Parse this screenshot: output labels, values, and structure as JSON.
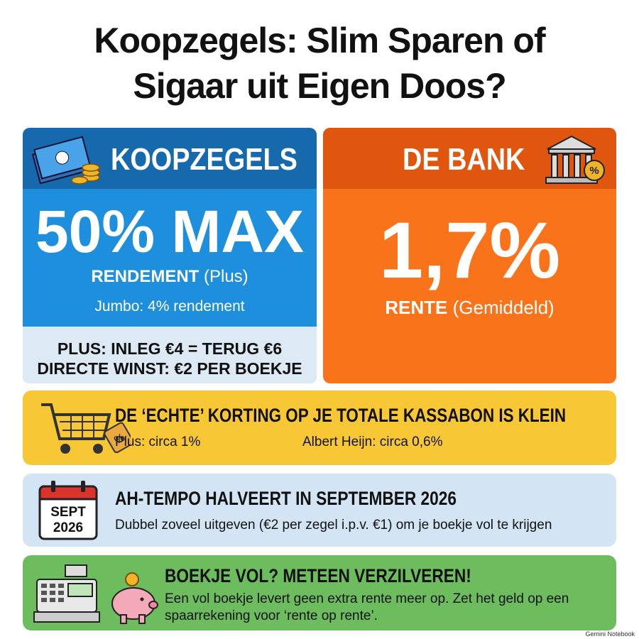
{
  "header": {
    "title_line1": "Koopzegels: Slim Sparen of",
    "title_line2": "Sigaar uit Eigen Doos?"
  },
  "koopzegels": {
    "heading": "KOOPZEGELS",
    "big": "50% MAX",
    "label": "RENDEMENT",
    "label_note": "(Plus)",
    "sub": "Jumbo: 4% rendement",
    "line1": "PLUS: INLEG €4 = TERUG €6",
    "line2": "DIRECTE WINST: €2 PER BOEKJE"
  },
  "bank": {
    "heading": "DE BANK",
    "big": "1,7%",
    "label": "RENTE",
    "label_note": "(Gemiddeld)"
  },
  "korting": {
    "heading": "DE ‘ECHTE’ KORTING OP JE TOTALE KASSABON IS KLEIN",
    "left": "Plus: circa 1%",
    "right": "Albert Heijn: circa 0,6%"
  },
  "tempo": {
    "cal_month": "SEPT",
    "cal_year": "2026",
    "heading": "AH-TEMPO HALVEERT IN SEPTEMBER 2026",
    "text": "Dubbel zoveel uitgeven (€2 per zegel i.p.v. €1) om je boekje vol te krijgen"
  },
  "verzilveren": {
    "heading": "BOEKJE VOL? METEEN VERZILVEREN!",
    "text": "Een vol boekje levert geen extra rente meer op. Zet het geld op een spaarrekening voor ‘rente op rente’."
  },
  "footer": {
    "brand": "Gemini Notebook"
  }
}
